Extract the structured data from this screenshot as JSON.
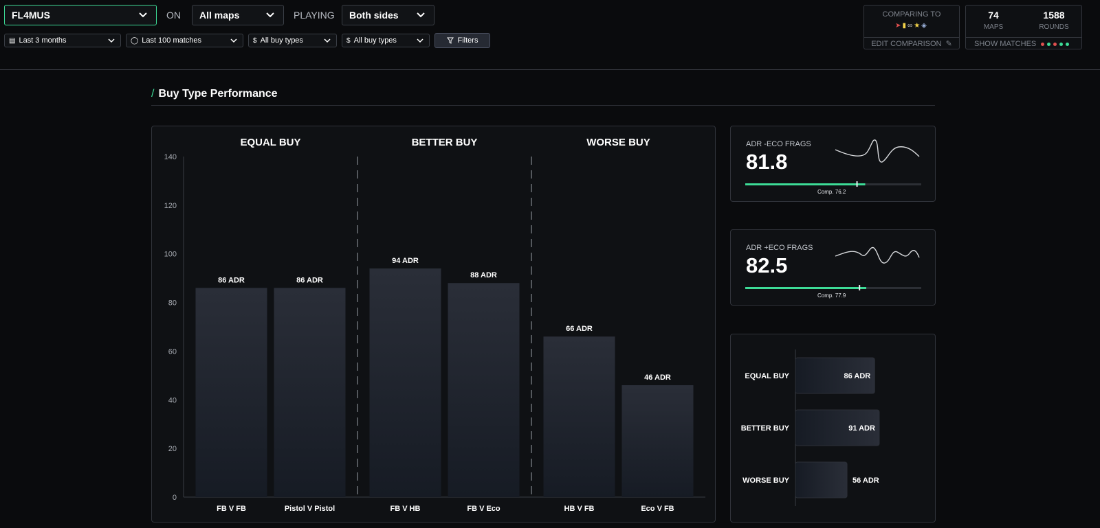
{
  "header": {
    "player_select": "FL4MUS",
    "on_label": "ON",
    "map_select": "All maps",
    "playing_label": "PLAYING",
    "side_select": "Both sides",
    "filters": {
      "period": "Last 3 months",
      "matches": "Last 100 matches",
      "buy_type_1": "All buy types",
      "buy_type_2": "All buy types",
      "filters_button": "Filters"
    },
    "comparison": {
      "title": "COMPARING TO",
      "edit_label": "EDIT COMPARISON"
    },
    "stats": {
      "maps_value": "74",
      "maps_label": "MAPS",
      "rounds_value": "1588",
      "rounds_label": "ROUNDS",
      "show_matches_label": "SHOW MATCHES",
      "match_dot_colors": [
        "#e0504f",
        "#3ddc97",
        "#e0504f",
        "#3ddc97",
        "#3ddc97"
      ]
    }
  },
  "section": {
    "title": "Buy Type Performance"
  },
  "chart_data": [
    {
      "type": "bar",
      "groups": [
        {
          "title": "EQUAL BUY",
          "categories": [
            "FB V FB",
            "Pistol V Pistol"
          ]
        },
        {
          "title": "BETTER BUY",
          "categories": [
            "FB V HB",
            "FB V Eco"
          ]
        },
        {
          "title": "WORSE BUY",
          "categories": [
            "HB V FB",
            "Eco V FB"
          ]
        }
      ],
      "categories": [
        "FB V FB",
        "Pistol V Pistol",
        "FB V HB",
        "FB V Eco",
        "HB V FB",
        "Eco V FB"
      ],
      "values": [
        86,
        86,
        94,
        88,
        66,
        46
      ],
      "value_labels": [
        "86 ADR",
        "86 ADR",
        "94 ADR",
        "88 ADR",
        "66 ADR",
        "46 ADR"
      ],
      "yticks": [
        "0",
        "20",
        "40",
        "60",
        "80",
        "100",
        "120",
        "140"
      ],
      "ylim": [
        0,
        140
      ],
      "grid": false
    },
    {
      "type": "bar",
      "orientation": "horizontal",
      "categories": [
        "EQUAL BUY",
        "BETTER BUY",
        "WORSE BUY"
      ],
      "values": [
        86,
        91,
        56
      ],
      "value_labels": [
        "86 ADR",
        "91 ADR",
        "56 ADR"
      ]
    }
  ],
  "kpis": [
    {
      "title": "ADR -ECO FRAGS",
      "value": "81.8",
      "value_num": 81.8,
      "comp_label": "Comp. 76.2",
      "comp_num": 76.2,
      "accent": "#3ddc97"
    },
    {
      "title": "ADR +ECO FRAGS",
      "value": "82.5",
      "value_num": 82.5,
      "comp_label": "Comp. 77.9",
      "comp_num": 77.9,
      "accent": "#3ddc97"
    }
  ]
}
